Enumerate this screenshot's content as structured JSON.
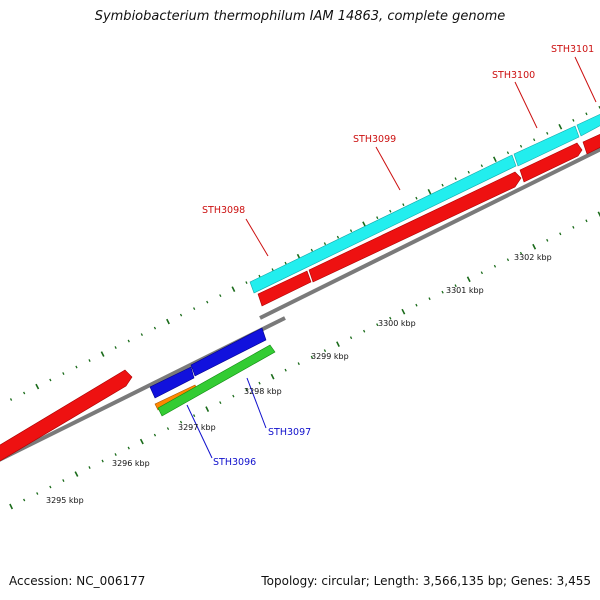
{
  "title": "Symbiobacterium thermophilum IAM 14863, complete genome",
  "footer": {
    "accession": "Accession: NC_006177",
    "summary": "Topology: circular; Length: 3,566,135 bp; Genes: 3,455"
  },
  "colors": {
    "backbone": "#7a7a7a",
    "tick": "#1a6b1a",
    "forward_red": "#ee1111",
    "forward_cyan": "#22eeee",
    "reverse_blue": "#1111dd",
    "reverse_green": "#33cc33",
    "reverse_orange": "#ff8800",
    "label_forward": "#cc1111",
    "label_reverse": "#1111cc"
  },
  "scale_labels": [
    "3295 kbp",
    "3296 kbp",
    "3297 kbp",
    "3298 kbp",
    "3299 kbp",
    "3300 kbp",
    "3301 kbp",
    "3302 kbp"
  ],
  "gene_labels": {
    "forward": [
      "STH3098",
      "STH3099",
      "STH3100",
      "STH3101"
    ],
    "reverse": [
      "STH3096",
      "STH3097"
    ]
  }
}
